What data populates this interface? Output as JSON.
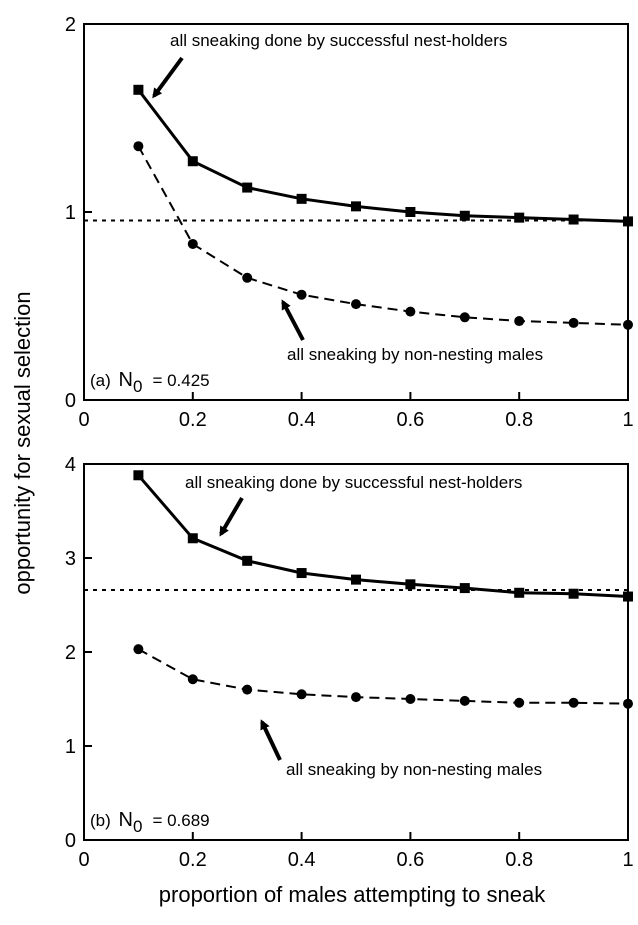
{
  "chart_data": [
    {
      "type": "line",
      "panel_label": "(a)",
      "n0_symbol": "N",
      "n0_subscript": "0",
      "n0_value_text": "= 0.425",
      "xlim": [
        0,
        1
      ],
      "ylim": [
        0,
        2
      ],
      "x_ticks": [
        "0",
        "0.2",
        "0.4",
        "0.6",
        "0.8",
        "1"
      ],
      "y_ticks": [
        "0",
        "1",
        "2"
      ],
      "grid": false,
      "x": [
        0.1,
        0.2,
        0.3,
        0.4,
        0.5,
        0.6,
        0.7,
        0.8,
        0.9,
        1.0
      ],
      "series": [
        {
          "label": "all sneaking done by successful nest-holders",
          "marker": "square",
          "line_style": "solid",
          "values": [
            1.65,
            1.27,
            1.13,
            1.07,
            1.03,
            1.0,
            0.98,
            0.97,
            0.96,
            0.95
          ]
        },
        {
          "label": "all sneaking by non-nesting males",
          "marker": "circle",
          "line_style": "dashed",
          "values": [
            1.35,
            0.83,
            0.65,
            0.56,
            0.51,
            0.47,
            0.44,
            0.42,
            0.41,
            0.4
          ]
        }
      ],
      "reference_line": {
        "y": 0.955,
        "line_style": "dotted"
      }
    },
    {
      "type": "line",
      "panel_label": "(b)",
      "n0_symbol": "N",
      "n0_subscript": "0",
      "n0_value_text": "= 0.689",
      "xlim": [
        0,
        1
      ],
      "ylim": [
        0,
        4
      ],
      "x_ticks": [
        "0",
        "0.2",
        "0.4",
        "0.6",
        "0.8",
        "1"
      ],
      "y_ticks": [
        "0",
        "1",
        "2",
        "3",
        "4"
      ],
      "grid": false,
      "x": [
        0.1,
        0.2,
        0.3,
        0.4,
        0.5,
        0.6,
        0.7,
        0.8,
        0.9,
        1.0
      ],
      "series": [
        {
          "label": "all sneaking done by successful nest-holders",
          "marker": "square",
          "line_style": "solid",
          "values": [
            3.88,
            3.21,
            2.97,
            2.84,
            2.77,
            2.72,
            2.68,
            2.63,
            2.62,
            2.59
          ]
        },
        {
          "label": "all sneaking by non-nesting males",
          "marker": "circle",
          "line_style": "dashed",
          "values": [
            2.03,
            1.71,
            1.6,
            1.55,
            1.52,
            1.5,
            1.48,
            1.46,
            1.46,
            1.45
          ]
        }
      ],
      "reference_line": {
        "y": 2.66,
        "line_style": "dotted"
      }
    }
  ],
  "shared_xlabel": "proportion of males attempting to sneak",
  "shared_ylabel": "opportunity for sexual selection"
}
